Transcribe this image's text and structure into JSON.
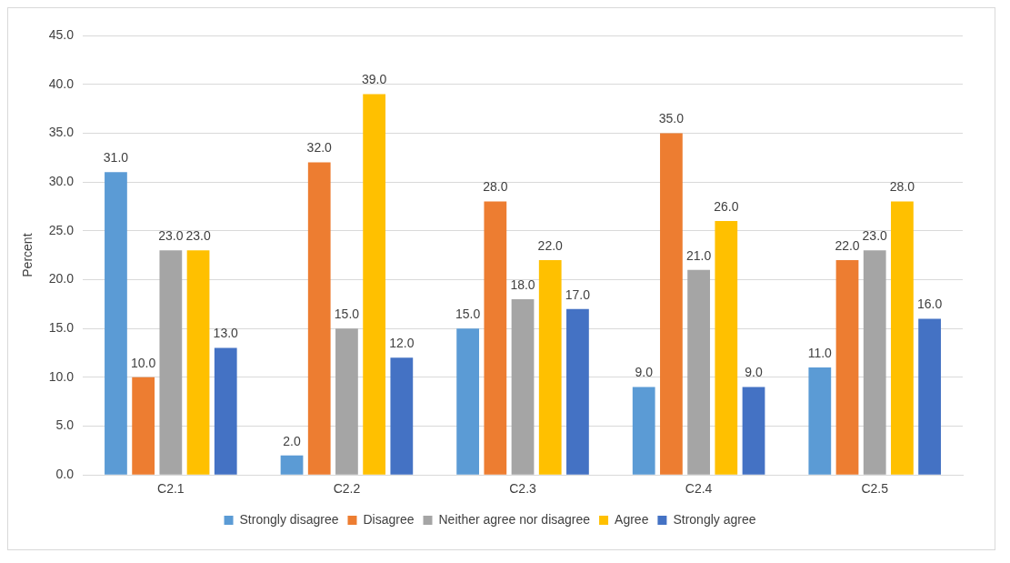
{
  "chart_data": {
    "type": "bar",
    "ylabel": "Percent",
    "categories": [
      "C2.1",
      "C2.2",
      "C2.3",
      "C2.4",
      "C2.5"
    ],
    "series": [
      {
        "name": "Strongly disagree",
        "color": "#5b9bd5",
        "values": [
          31,
          2,
          15,
          9,
          11
        ],
        "value_labels": [
          "31.0",
          "2.0",
          "15.0",
          "9.0",
          "11.0"
        ]
      },
      {
        "name": "Disagree",
        "color": "#ed7d31",
        "values": [
          10,
          32,
          28,
          35,
          22
        ],
        "value_labels": [
          "10.0",
          "32.0",
          "28.0",
          "35.0",
          "22.0"
        ]
      },
      {
        "name": "Neither agree nor disagree",
        "color": "#a5a5a5",
        "values": [
          23,
          15,
          18,
          21,
          23
        ],
        "value_labels": [
          "23.0",
          "15.0",
          "18.0",
          "21.0",
          "23.0"
        ]
      },
      {
        "name": "Agree",
        "color": "#ffc000",
        "values": [
          23,
          39,
          22,
          26,
          28
        ],
        "value_labels": [
          "23.0",
          "39.0",
          "22.0",
          "26.0",
          "28.0"
        ]
      },
      {
        "name": "Strongly agree",
        "color": "#4472c4",
        "values": [
          13,
          12,
          17,
          9,
          16
        ],
        "value_labels": [
          "13.0",
          "12.0",
          "17.0",
          "9.0",
          "16.0"
        ]
      }
    ],
    "ylim": [
      0,
      45
    ],
    "yticks": [
      {
        "value": 0,
        "label": "0.0"
      },
      {
        "value": 5,
        "label": "5.0"
      },
      {
        "value": 10,
        "label": "10.0"
      },
      {
        "value": 15,
        "label": "15.0"
      },
      {
        "value": 20,
        "label": "20.0"
      },
      {
        "value": 25,
        "label": "25.0"
      },
      {
        "value": 30,
        "label": "30.0"
      },
      {
        "value": 35,
        "label": "35.0"
      },
      {
        "value": 40,
        "label": "40.0"
      },
      {
        "value": 45,
        "label": "45.0"
      }
    ],
    "grid": "y",
    "legend": "bottom"
  }
}
